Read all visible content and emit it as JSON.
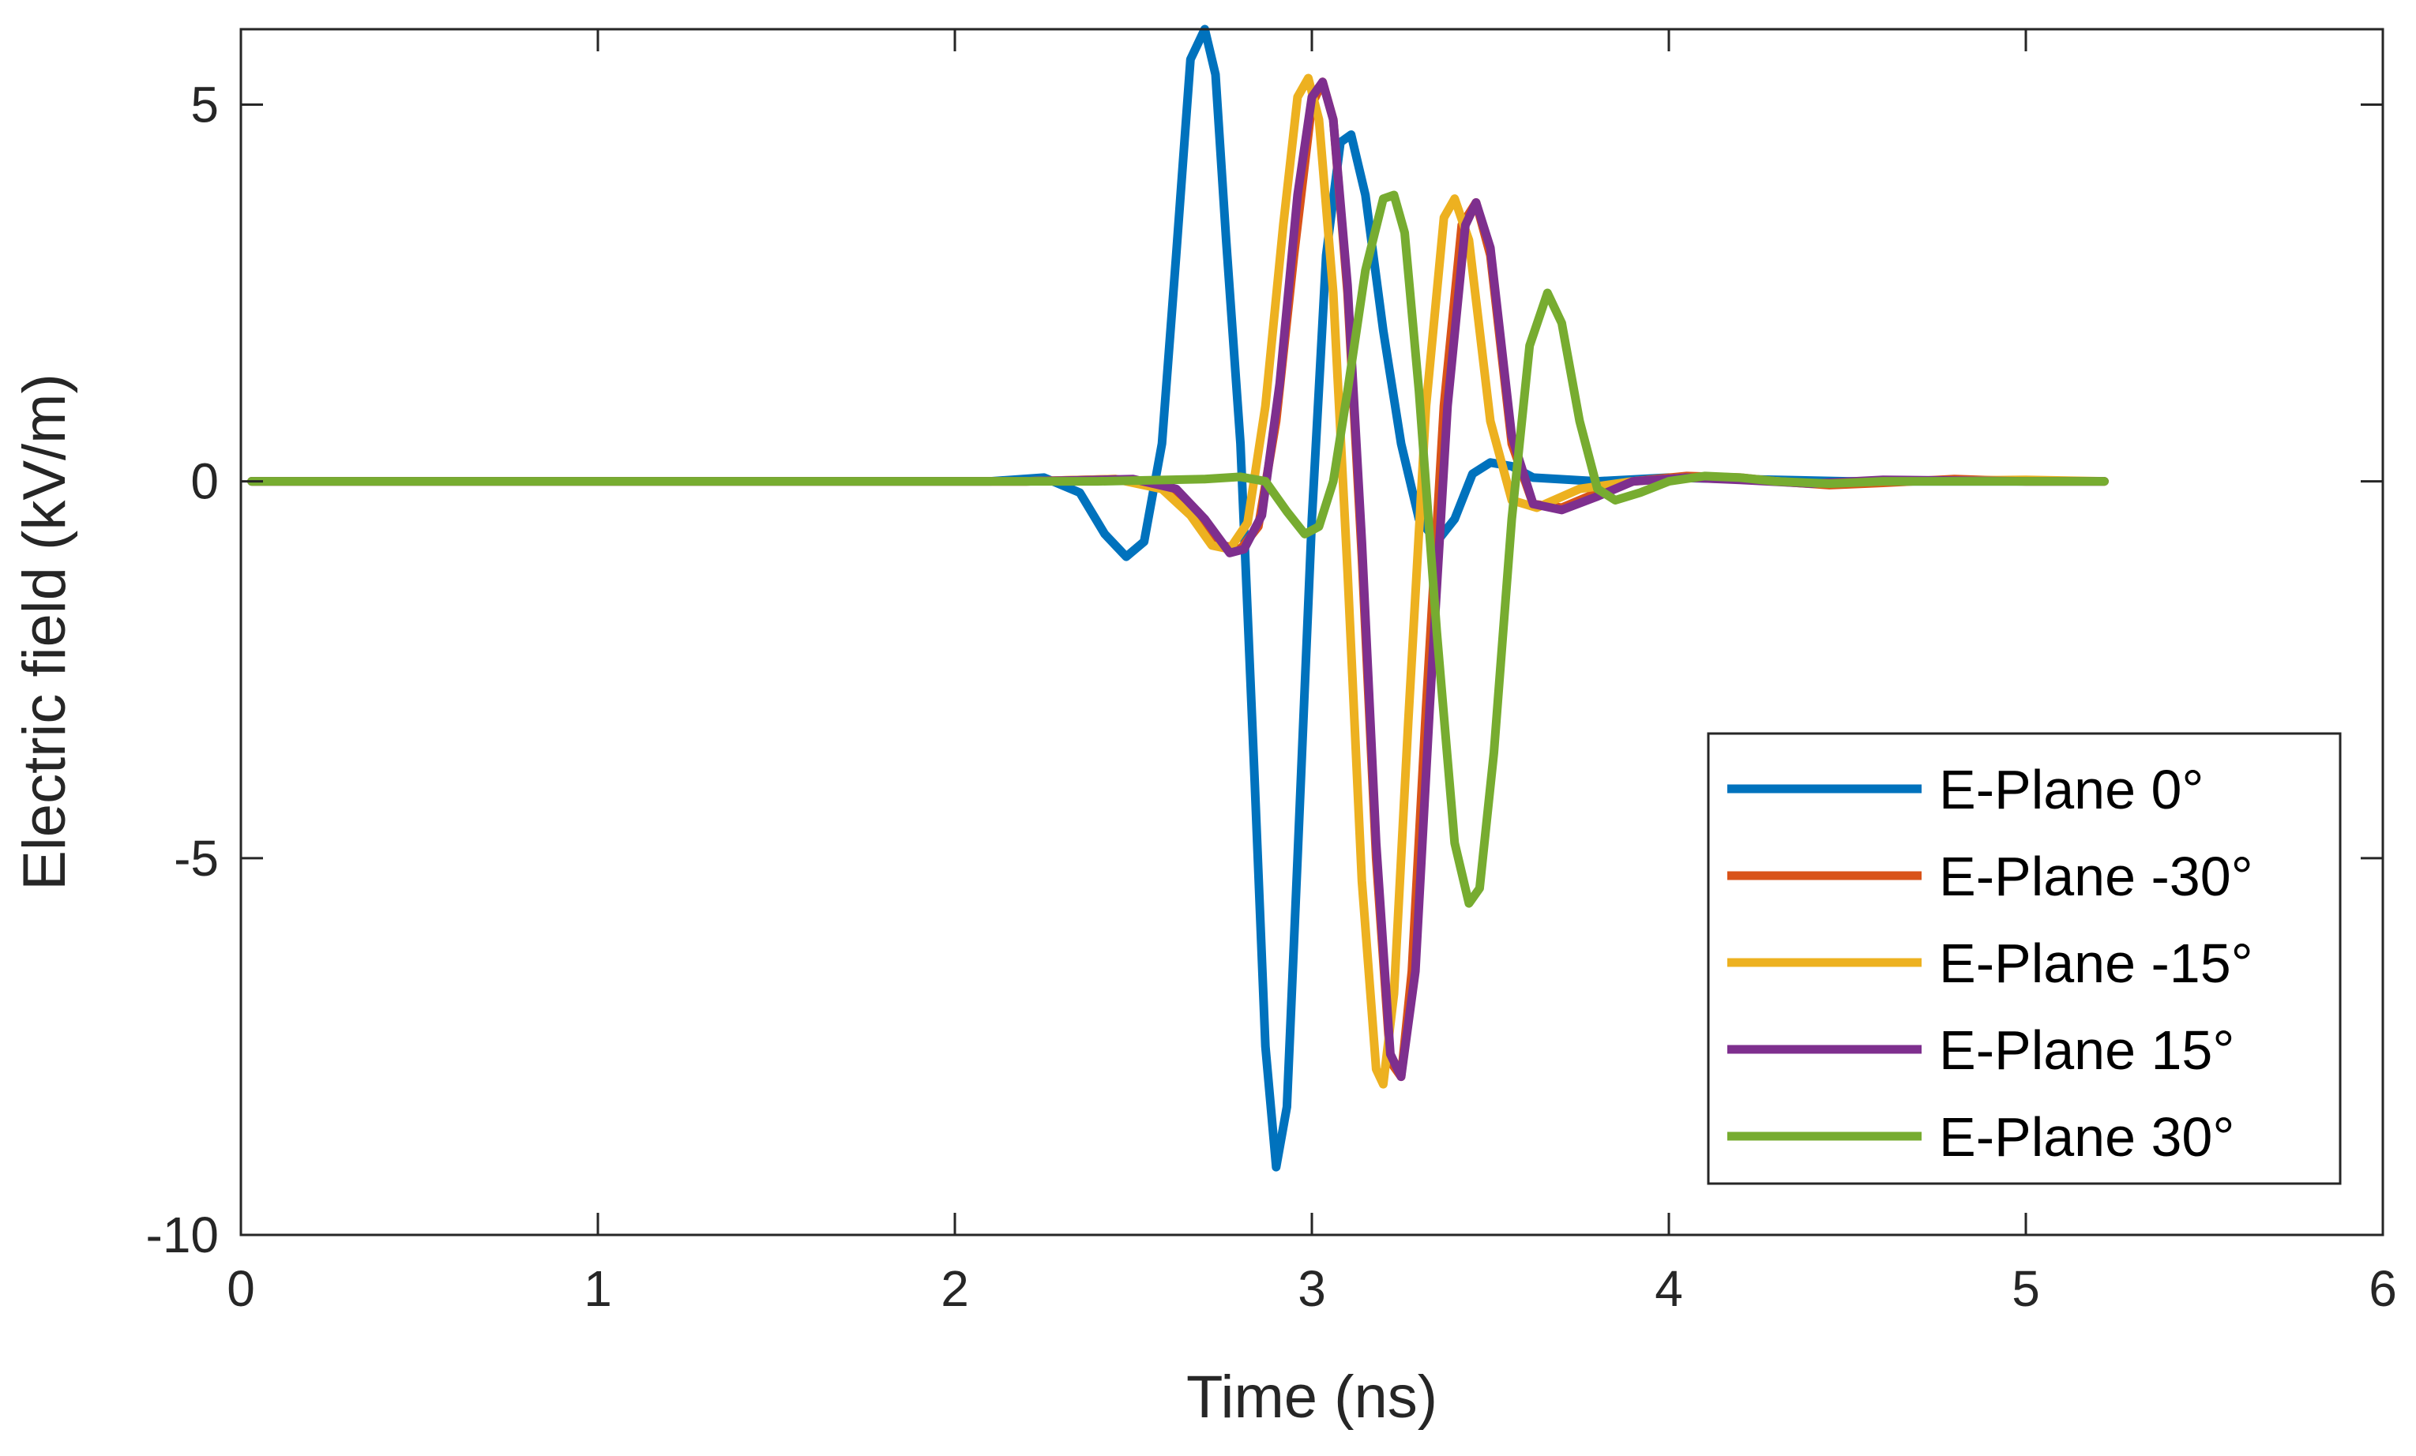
{
  "chart_data": {
    "type": "line",
    "title": "",
    "xlabel": "Time (ns)",
    "ylabel": "Electric field (kV/m)",
    "xlim": [
      0,
      6
    ],
    "ylim": [
      -10,
      6
    ],
    "xticks": [
      0,
      1,
      2,
      3,
      4,
      5,
      6
    ],
    "xtick_labels": [
      "0",
      "1",
      "2",
      "3",
      "4",
      "5",
      "6"
    ],
    "yticks": [
      -10,
      -5,
      0,
      5
    ],
    "ytick_labels": [
      "-10",
      "-5",
      "0",
      "5"
    ],
    "grid": true,
    "legend_position": "bottom-right",
    "series": [
      {
        "name": "E-Plane 0°",
        "color": "#0072BD",
        "points": [
          [
            0.03,
            0
          ],
          [
            2.1,
            0
          ],
          [
            2.25,
            0.05
          ],
          [
            2.35,
            -0.15
          ],
          [
            2.42,
            -0.7
          ],
          [
            2.48,
            -1.0
          ],
          [
            2.53,
            -0.8
          ],
          [
            2.58,
            0.5
          ],
          [
            2.62,
            3.0
          ],
          [
            2.66,
            5.6
          ],
          [
            2.7,
            6.0
          ],
          [
            2.73,
            5.4
          ],
          [
            2.76,
            3.2
          ],
          [
            2.8,
            0.5
          ],
          [
            2.84,
            -4.0
          ],
          [
            2.87,
            -7.5
          ],
          [
            2.9,
            -9.1
          ],
          [
            2.93,
            -8.3
          ],
          [
            2.96,
            -5.0
          ],
          [
            3.0,
            -0.5
          ],
          [
            3.04,
            3.0
          ],
          [
            3.08,
            4.5
          ],
          [
            3.11,
            4.6
          ],
          [
            3.15,
            3.8
          ],
          [
            3.2,
            2.0
          ],
          [
            3.25,
            0.5
          ],
          [
            3.3,
            -0.5
          ],
          [
            3.35,
            -0.8
          ],
          [
            3.4,
            -0.5
          ],
          [
            3.45,
            0.1
          ],
          [
            3.5,
            0.25
          ],
          [
            3.56,
            0.2
          ],
          [
            3.62,
            0.05
          ],
          [
            3.8,
            0
          ],
          [
            4.0,
            0.05
          ],
          [
            4.5,
            0
          ],
          [
            5.22,
            0
          ]
        ]
      },
      {
        "name": "E-Plane -30°",
        "color": "#D95319",
        "points": [
          [
            0.03,
            0
          ],
          [
            2.2,
            0
          ],
          [
            2.45,
            0.03
          ],
          [
            2.6,
            -0.1
          ],
          [
            2.68,
            -0.4
          ],
          [
            2.75,
            -0.85
          ],
          [
            2.8,
            -0.9
          ],
          [
            2.85,
            -0.6
          ],
          [
            2.9,
            0.8
          ],
          [
            2.95,
            3.0
          ],
          [
            3.0,
            5.0
          ],
          [
            3.03,
            5.3
          ],
          [
            3.06,
            4.8
          ],
          [
            3.1,
            2.5
          ],
          [
            3.14,
            -1.0
          ],
          [
            3.18,
            -5.0
          ],
          [
            3.22,
            -7.7
          ],
          [
            3.25,
            -7.9
          ],
          [
            3.28,
            -6.5
          ],
          [
            3.32,
            -3.0
          ],
          [
            3.37,
            1.0
          ],
          [
            3.42,
            3.4
          ],
          [
            3.46,
            3.7
          ],
          [
            3.5,
            3.0
          ],
          [
            3.56,
            0.5
          ],
          [
            3.62,
            -0.3
          ],
          [
            3.7,
            -0.35
          ],
          [
            3.8,
            -0.15
          ],
          [
            3.9,
            0
          ],
          [
            4.05,
            0.07
          ],
          [
            4.2,
            0.05
          ],
          [
            4.3,
            0
          ],
          [
            4.45,
            -0.05
          ],
          [
            4.6,
            -0.02
          ],
          [
            4.8,
            0.03
          ],
          [
            5.0,
            0
          ],
          [
            5.22,
            0
          ]
        ]
      },
      {
        "name": "E-Plane -15°",
        "color": "#EDB120",
        "points": [
          [
            0.03,
            0
          ],
          [
            2.2,
            0
          ],
          [
            2.45,
            0.03
          ],
          [
            2.58,
            -0.1
          ],
          [
            2.66,
            -0.45
          ],
          [
            2.72,
            -0.85
          ],
          [
            2.77,
            -0.9
          ],
          [
            2.82,
            -0.55
          ],
          [
            2.87,
            1.0
          ],
          [
            2.92,
            3.4
          ],
          [
            2.96,
            5.1
          ],
          [
            2.99,
            5.35
          ],
          [
            3.02,
            4.8
          ],
          [
            3.06,
            2.5
          ],
          [
            3.1,
            -1.2
          ],
          [
            3.14,
            -5.3
          ],
          [
            3.18,
            -7.8
          ],
          [
            3.2,
            -8.0
          ],
          [
            3.23,
            -6.8
          ],
          [
            3.27,
            -3.2
          ],
          [
            3.32,
            1.0
          ],
          [
            3.37,
            3.5
          ],
          [
            3.4,
            3.75
          ],
          [
            3.44,
            3.2
          ],
          [
            3.5,
            0.8
          ],
          [
            3.56,
            -0.25
          ],
          [
            3.63,
            -0.35
          ],
          [
            3.75,
            -0.1
          ],
          [
            3.9,
            0
          ],
          [
            4.05,
            0.05
          ],
          [
            4.2,
            0.03
          ],
          [
            4.4,
            -0.03
          ],
          [
            4.6,
            0
          ],
          [
            5.0,
            0.02
          ],
          [
            5.22,
            0
          ]
        ]
      },
      {
        "name": "E-Plane 15°",
        "color": "#7E2F8E",
        "points": [
          [
            0.03,
            0
          ],
          [
            2.2,
            0
          ],
          [
            2.5,
            0.03
          ],
          [
            2.62,
            -0.1
          ],
          [
            2.7,
            -0.5
          ],
          [
            2.77,
            -0.95
          ],
          [
            2.81,
            -0.9
          ],
          [
            2.86,
            -0.45
          ],
          [
            2.91,
            1.3
          ],
          [
            2.96,
            3.8
          ],
          [
            3.0,
            5.1
          ],
          [
            3.03,
            5.3
          ],
          [
            3.06,
            4.8
          ],
          [
            3.1,
            2.6
          ],
          [
            3.14,
            -0.8
          ],
          [
            3.18,
            -4.8
          ],
          [
            3.22,
            -7.6
          ],
          [
            3.25,
            -7.9
          ],
          [
            3.29,
            -6.5
          ],
          [
            3.33,
            -3.0
          ],
          [
            3.38,
            1.0
          ],
          [
            3.43,
            3.4
          ],
          [
            3.46,
            3.7
          ],
          [
            3.5,
            3.1
          ],
          [
            3.56,
            0.6
          ],
          [
            3.62,
            -0.3
          ],
          [
            3.7,
            -0.38
          ],
          [
            3.8,
            -0.2
          ],
          [
            3.9,
            0
          ],
          [
            4.05,
            0.05
          ],
          [
            4.2,
            0.02
          ],
          [
            4.4,
            -0.03
          ],
          [
            4.6,
            0.02
          ],
          [
            5.0,
            0
          ],
          [
            5.22,
            0
          ]
        ]
      },
      {
        "name": "E-Plane 30°",
        "color": "#77AC30",
        "points": [
          [
            0.03,
            0
          ],
          [
            2.4,
            0
          ],
          [
            2.7,
            0.03
          ],
          [
            2.8,
            0.06
          ],
          [
            2.87,
            0
          ],
          [
            2.93,
            -0.4
          ],
          [
            2.98,
            -0.7
          ],
          [
            3.02,
            -0.6
          ],
          [
            3.06,
            0
          ],
          [
            3.1,
            1.2
          ],
          [
            3.15,
            2.8
          ],
          [
            3.2,
            3.75
          ],
          [
            3.23,
            3.8
          ],
          [
            3.26,
            3.3
          ],
          [
            3.3,
            1.2
          ],
          [
            3.35,
            -2.0
          ],
          [
            3.4,
            -4.8
          ],
          [
            3.44,
            -5.6
          ],
          [
            3.47,
            -5.4
          ],
          [
            3.51,
            -3.6
          ],
          [
            3.56,
            -0.5
          ],
          [
            3.61,
            1.8
          ],
          [
            3.66,
            2.5
          ],
          [
            3.7,
            2.1
          ],
          [
            3.75,
            0.8
          ],
          [
            3.8,
            -0.1
          ],
          [
            3.85,
            -0.25
          ],
          [
            3.92,
            -0.15
          ],
          [
            4.0,
            0
          ],
          [
            4.1,
            0.07
          ],
          [
            4.2,
            0.05
          ],
          [
            4.3,
            0
          ],
          [
            4.45,
            -0.03
          ],
          [
            4.6,
            0
          ],
          [
            5.0,
            0
          ],
          [
            5.22,
            0
          ]
        ]
      }
    ]
  }
}
